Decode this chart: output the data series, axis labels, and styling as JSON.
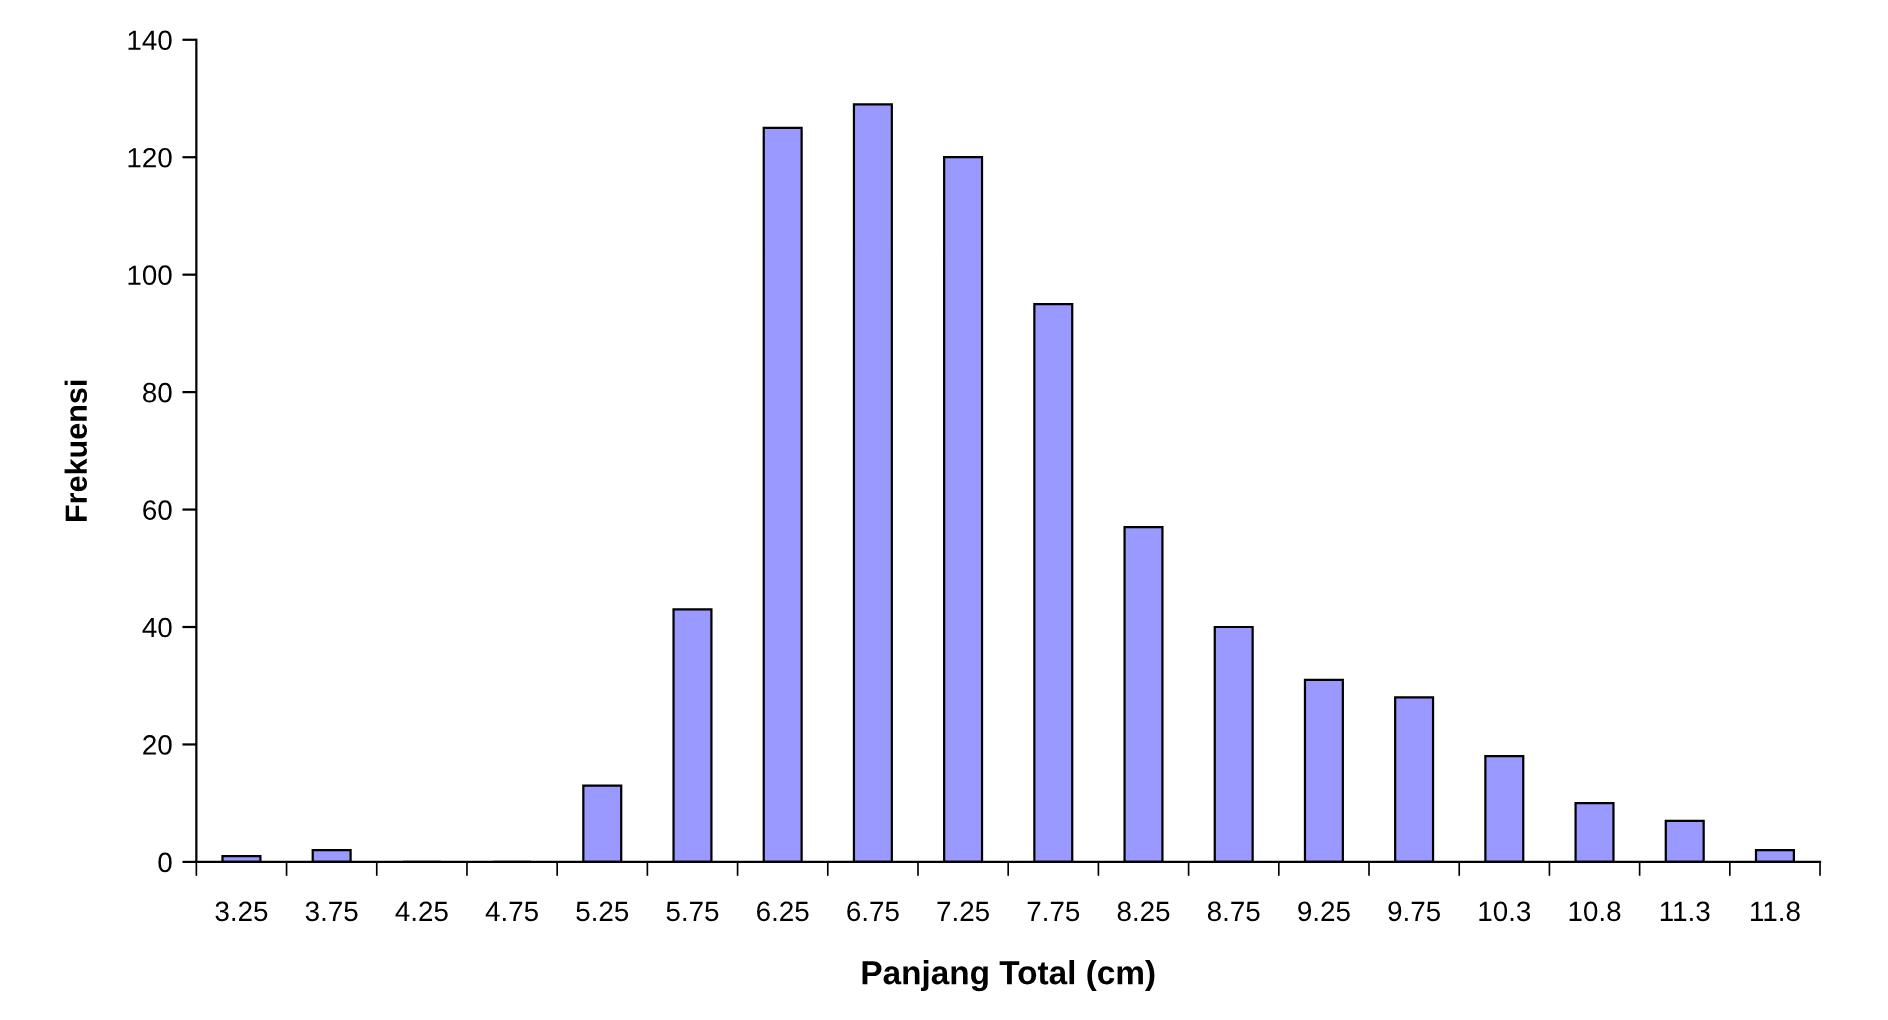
{
  "chart_data": {
    "type": "bar",
    "xlabel": "Panjang Total (cm)",
    "ylabel": "Frekuensi",
    "categories": [
      "3.25",
      "3.75",
      "4.25",
      "4.75",
      "5.25",
      "5.75",
      "6.25",
      "6.75",
      "7.25",
      "7.75",
      "8.25",
      "8.75",
      "9.25",
      "9.75",
      "10.3",
      "10.8",
      "11.3",
      "11.8"
    ],
    "values": [
      1,
      2,
      0,
      0,
      13,
      43,
      125,
      129,
      120,
      95,
      57,
      40,
      31,
      28,
      18,
      10,
      7,
      2
    ],
    "color": "#9999ff",
    "ylim": [
      0,
      140
    ],
    "yticks": [
      0,
      20,
      40,
      60,
      80,
      100,
      120,
      140
    ],
    "grid": false,
    "legend": false
  }
}
